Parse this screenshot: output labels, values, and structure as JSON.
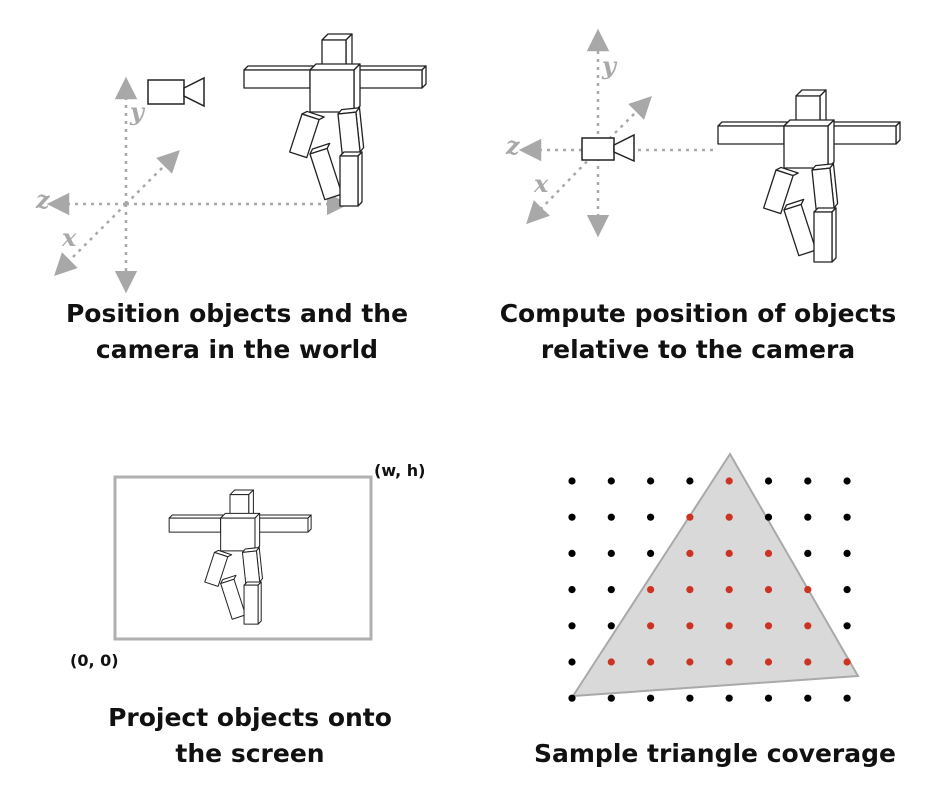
{
  "panels": {
    "world": {
      "caption": [
        "Position objects and the",
        "camera in the world"
      ],
      "axes": {
        "x": "x",
        "y": "y",
        "z": "z"
      }
    },
    "camera": {
      "caption": [
        "Compute position of objects",
        "relative to the camera"
      ],
      "axes": {
        "x": "x",
        "y": "y",
        "z": "z"
      }
    },
    "project": {
      "caption": [
        "Project objects onto",
        "the screen"
      ],
      "corner_top_right": "(w, h)",
      "corner_bottom_left": "(0, 0)"
    },
    "sample": {
      "caption": [
        "Sample triangle coverage"
      ]
    }
  },
  "colors": {
    "axis": "#a8a8a8",
    "outline": "#222222",
    "screen_border": "#b0b0b0",
    "triangle_fill": "#d9d9d9",
    "triangle_stroke": "#a9a9a9",
    "sample_in": "#cc3322",
    "sample_out": "#000000"
  }
}
